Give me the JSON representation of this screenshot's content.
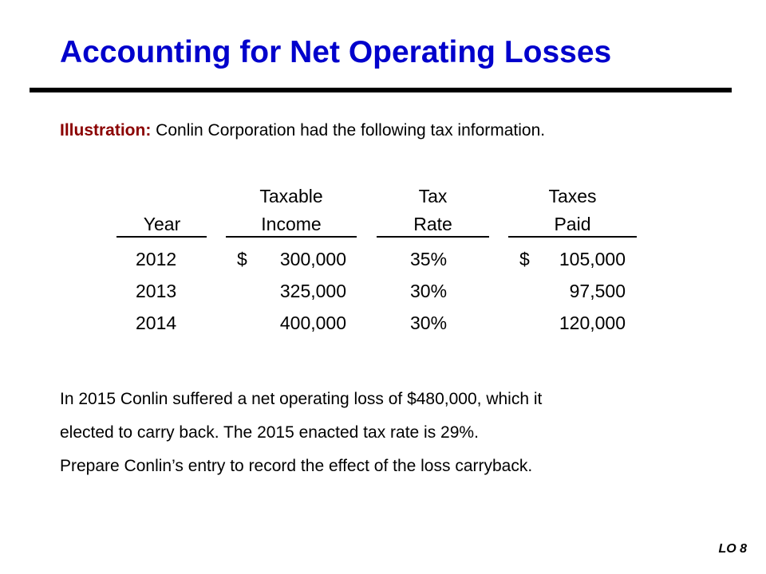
{
  "slide": {
    "title": "Accounting for Net Operating Losses",
    "intro_label": "Illustration:",
    "intro_text": " Conlin Corporation had the following tax information.",
    "footer": "LO 8"
  },
  "table": {
    "headers": {
      "year": [
        "",
        "Year"
      ],
      "income": [
        "Taxable",
        "Income"
      ],
      "rate": [
        "Tax",
        "Rate"
      ],
      "paid": [
        "Taxes",
        "Paid"
      ]
    },
    "rows": [
      {
        "year": "2012",
        "income_symbol": "$",
        "income": "300,000",
        "rate": "35%",
        "paid_symbol": "$",
        "paid": "105,000"
      },
      {
        "year": "2013",
        "income_symbol": "",
        "income": "325,000",
        "rate": "30%",
        "paid_symbol": "",
        "paid": "97,500"
      },
      {
        "year": "2014",
        "income_symbol": "",
        "income": "400,000",
        "rate": "30%",
        "paid_symbol": "",
        "paid": "120,000"
      }
    ]
  },
  "paragraph": [
    "In 2015 Conlin suffered a net operating loss of $480,000, which it",
    "elected to carry back.  The 2015 enacted tax rate is 29%.",
    "Prepare Conlin’s entry to record the effect of the loss carryback."
  ]
}
